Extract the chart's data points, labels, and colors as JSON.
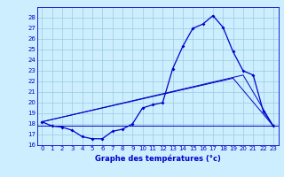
{
  "title": "Graphe des températures (°c)",
  "bg_color": "#cceeff",
  "line_color": "#0000cc",
  "grid_color": "#99ccdd",
  "ylim": [
    16,
    29
  ],
  "xlim": [
    -0.5,
    23.5
  ],
  "yticks": [
    16,
    17,
    18,
    19,
    20,
    21,
    22,
    23,
    24,
    25,
    26,
    27,
    28
  ],
  "xticks": [
    0,
    1,
    2,
    3,
    4,
    5,
    6,
    7,
    8,
    9,
    10,
    11,
    12,
    13,
    14,
    15,
    16,
    17,
    18,
    19,
    20,
    21,
    22,
    23
  ],
  "hours": [
    0,
    1,
    2,
    3,
    4,
    5,
    6,
    7,
    8,
    9,
    10,
    11,
    12,
    13,
    14,
    15,
    16,
    17,
    18,
    19,
    20,
    21,
    22,
    23
  ],
  "temp1": [
    18.2,
    17.8,
    17.7,
    17.4,
    16.8,
    16.6,
    16.6,
    17.3,
    17.5,
    18.0,
    19.5,
    19.8,
    20.0,
    23.2,
    25.3,
    27.0,
    27.4,
    28.2,
    27.1,
    24.8,
    23.0,
    22.6,
    19.2,
    17.8
  ],
  "flat_line_y": 17.8,
  "trend1_x": [
    0,
    20,
    23
  ],
  "trend1_y": [
    18.2,
    22.6,
    17.8
  ],
  "trend2_x": [
    0,
    19,
    23
  ],
  "trend2_y": [
    18.2,
    22.3,
    17.8
  ],
  "tick_fontsize": 5.0,
  "xlabel_fontsize": 6.0
}
